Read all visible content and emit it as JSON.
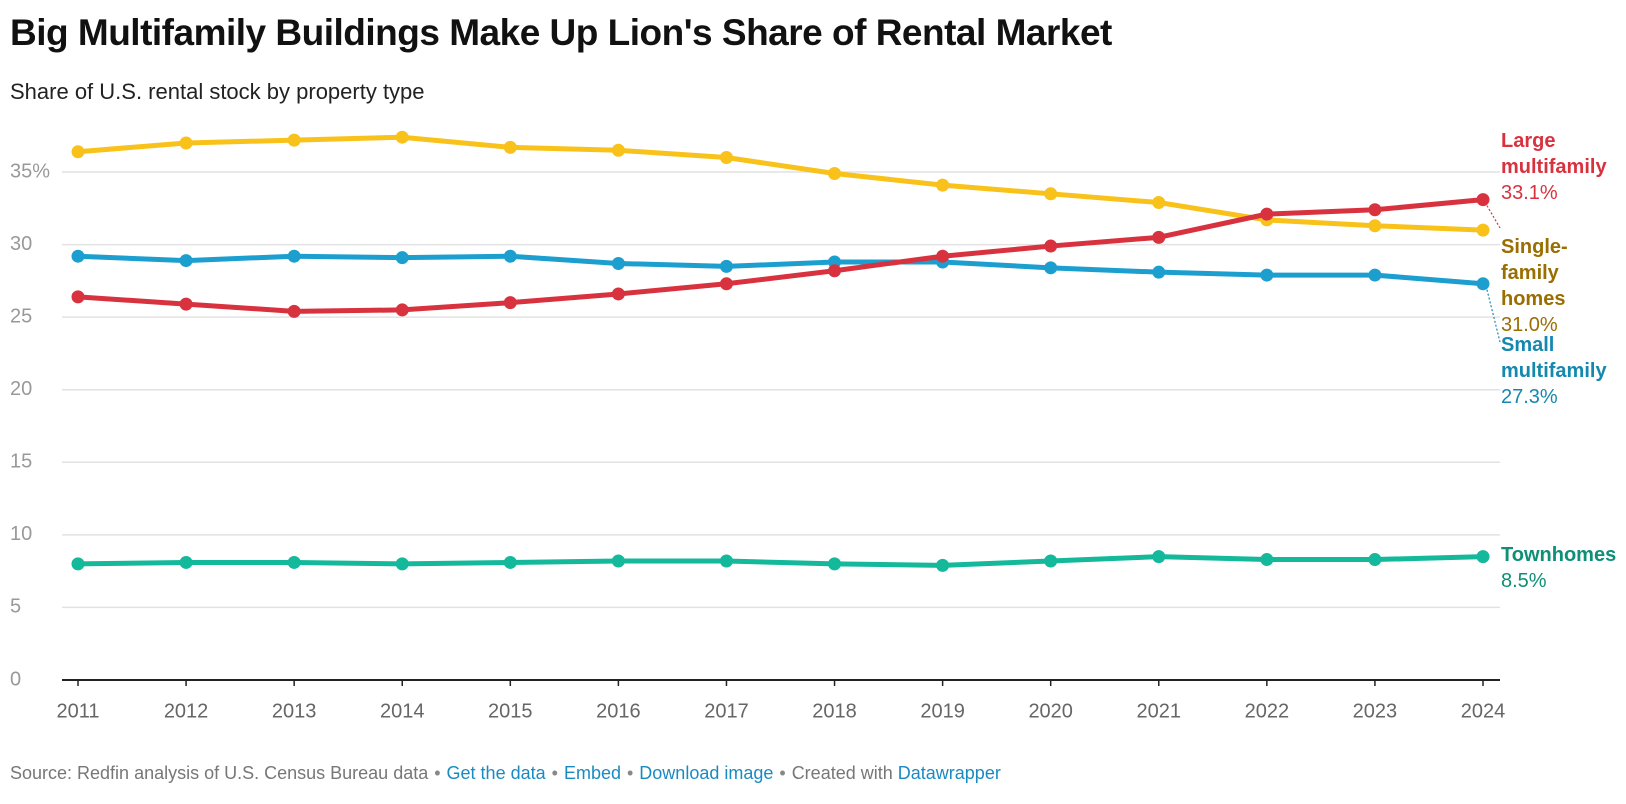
{
  "chart_data": {
    "type": "line",
    "title": "Big Multifamily Buildings Make Up Lion's Share of Rental Market",
    "subtitle": "Share of U.S. rental stock by property type",
    "x": [
      2011,
      2012,
      2013,
      2014,
      2015,
      2016,
      2017,
      2018,
      2019,
      2020,
      2021,
      2022,
      2023,
      2024
    ],
    "xlim": [
      2011,
      2024
    ],
    "xticks": [
      2011,
      2012,
      2013,
      2014,
      2015,
      2016,
      2017,
      2018,
      2019,
      2020,
      2021,
      2022,
      2023,
      2024
    ],
    "ylim": [
      0,
      38
    ],
    "yticks": [
      0,
      5,
      10,
      15,
      20,
      25,
      30,
      {
        "value": 35,
        "label": "35%"
      }
    ],
    "grid": true,
    "series": [
      {
        "name": "Single-family homes",
        "color": "#f8c21a",
        "label_color": "#9a6e00",
        "values": [
          36.4,
          37.0,
          37.2,
          37.4,
          36.7,
          36.5,
          36.0,
          34.9,
          34.1,
          33.5,
          32.9,
          31.7,
          31.3,
          31.0
        ],
        "value_labels": [
          null,
          null,
          null,
          null,
          null,
          null,
          null,
          null,
          null,
          null,
          null,
          null,
          null,
          "31.0%"
        ]
      },
      {
        "name": "Small multifamily",
        "color": "#1c9fcf",
        "label_color": "#1588b0",
        "values": [
          29.2,
          28.9,
          29.2,
          29.1,
          29.2,
          28.7,
          28.5,
          28.8,
          28.8,
          28.4,
          28.1,
          27.9,
          27.9,
          27.3
        ],
        "value_labels": [
          null,
          null,
          null,
          null,
          null,
          null,
          null,
          null,
          null,
          null,
          null,
          null,
          null,
          "27.3%"
        ]
      },
      {
        "name": "Large multifamily",
        "color": "#d8323f",
        "label_color": "#d8323f",
        "values": [
          26.4,
          25.9,
          25.4,
          25.5,
          26.0,
          26.6,
          27.3,
          28.2,
          29.2,
          29.9,
          30.5,
          32.1,
          32.4,
          33.1
        ],
        "value_labels": [
          null,
          null,
          null,
          null,
          null,
          null,
          null,
          null,
          null,
          null,
          null,
          null,
          null,
          "33.1%"
        ]
      },
      {
        "name": "Townhomes",
        "color": "#14b89a",
        "label_color": "#0e8f78",
        "values": [
          8.0,
          8.1,
          8.1,
          8.0,
          8.1,
          8.2,
          8.2,
          8.0,
          7.9,
          8.2,
          8.5,
          8.3,
          8.3,
          8.5
        ],
        "value_labels": [
          null,
          null,
          null,
          null,
          null,
          null,
          null,
          null,
          null,
          null,
          null,
          null,
          null,
          "8.5%"
        ]
      }
    ]
  },
  "footer": {
    "source": "Source: Redfin analysis of U.S. Census Bureau data",
    "links": [
      "Get the data",
      "Embed",
      "Download image"
    ],
    "created": "Created with",
    "tool": "Datawrapper"
  }
}
